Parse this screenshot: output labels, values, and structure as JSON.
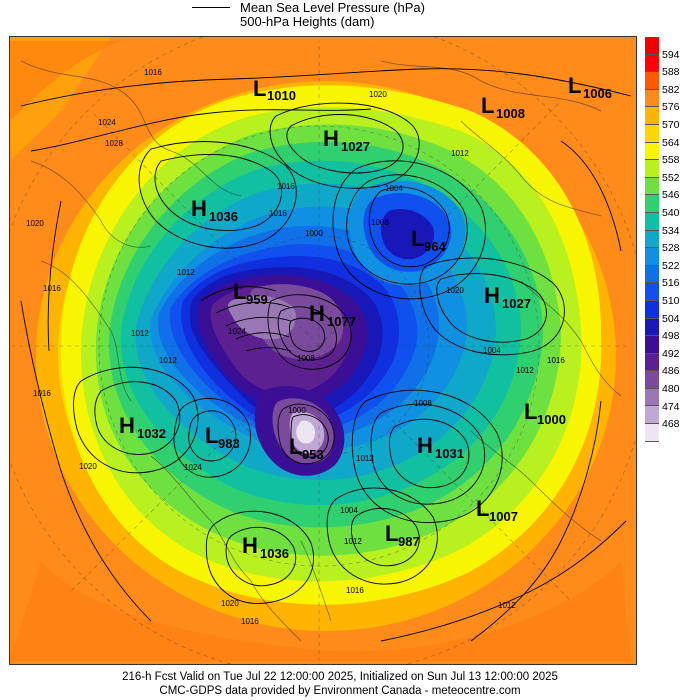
{
  "legend": {
    "line1": "Mean Sea Level Pressure (hPa)",
    "line2": "500-hPa Heights (dam)"
  },
  "colorbar": {
    "labels": [
      "594",
      "588",
      "582",
      "576",
      "570",
      "564",
      "558",
      "552",
      "546",
      "540",
      "534",
      "528",
      "522",
      "516",
      "510",
      "504",
      "498",
      "492",
      "486",
      "480",
      "474",
      "468"
    ],
    "colors": [
      "#ff0000",
      "#ff5a00",
      "#ff8c1a",
      "#ffb400",
      "#ffd800",
      "#f8f500",
      "#b8f020",
      "#6ee040",
      "#30d070",
      "#10c0a0",
      "#10a8c8",
      "#1090e0",
      "#1070e8",
      "#1050ee",
      "#1030e0",
      "#1818b8",
      "#3a0f96",
      "#5c2090",
      "#7a4a9c",
      "#9a78b6",
      "#c0a8d4",
      "#ece6f2"
    ]
  },
  "systems": [
    {
      "type": "L",
      "value": "1010"
    },
    {
      "type": "L",
      "value": "1008"
    },
    {
      "type": "L",
      "value": "1006"
    },
    {
      "type": "H",
      "value": "1027"
    },
    {
      "type": "H",
      "value": "1036"
    },
    {
      "type": "L",
      "value": "964"
    },
    {
      "type": "L",
      "value": "959"
    },
    {
      "type": "H",
      "value": "1077"
    },
    {
      "type": "H",
      "value": "1027"
    },
    {
      "type": "H",
      "value": "1032"
    },
    {
      "type": "L",
      "value": "983"
    },
    {
      "type": "L",
      "value": "953"
    },
    {
      "type": "H",
      "value": "1031"
    },
    {
      "type": "L",
      "value": "1000"
    },
    {
      "type": "L",
      "value": "1007"
    },
    {
      "type": "L",
      "value": "987"
    },
    {
      "type": "H",
      "value": "1036"
    }
  ],
  "isobar_labels": [
    "1016",
    "1020",
    "1024",
    "1028",
    "1016",
    "1020",
    "1016",
    "1012",
    "1004",
    "1008",
    "1000",
    "1012",
    "1016",
    "1020",
    "1012",
    "1016",
    "1012",
    "1004",
    "1008",
    "1008",
    "1012",
    "1000",
    "1004",
    "1016",
    "1012",
    "1020",
    "1016",
    "1024",
    "1016",
    "1012",
    "1012",
    "1020",
    "1024"
  ],
  "footer": {
    "line1": "216-h Fcst Valid on Tue Jul 22 12:00:00 2025, Initialized on Sun Jul 13 12:00:00 2025",
    "line2": "CMC-GDPS data provided by Environment Canada - meteocentre.com"
  }
}
